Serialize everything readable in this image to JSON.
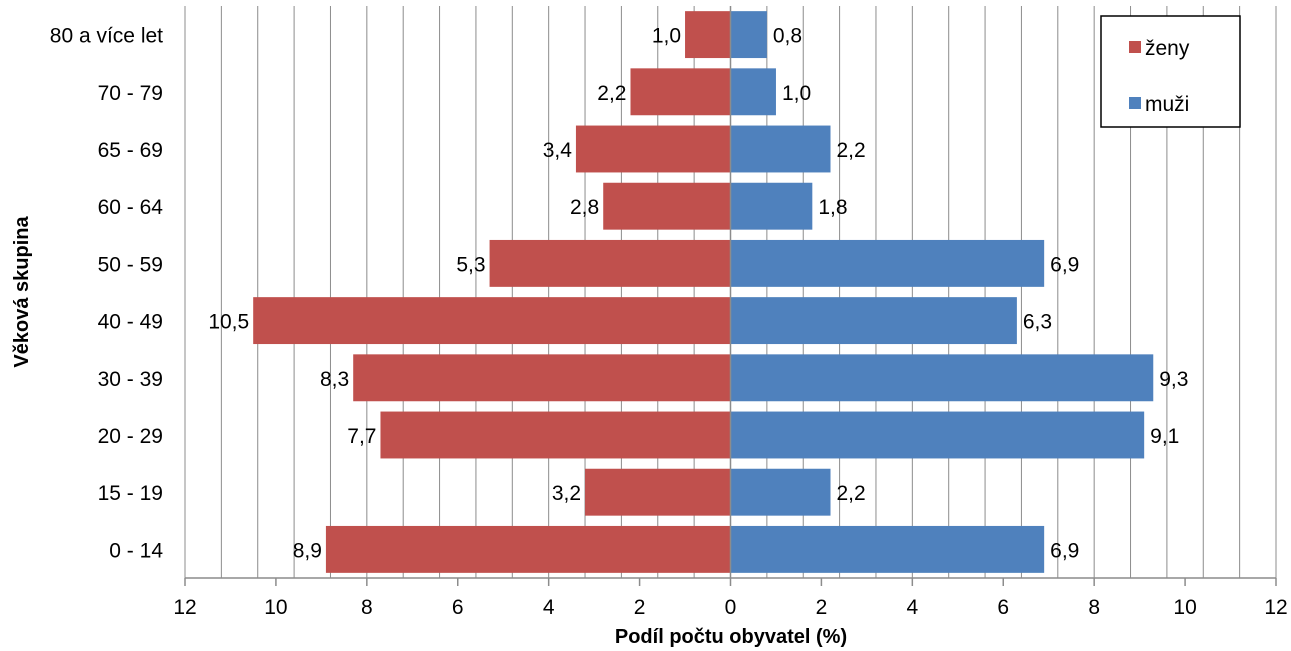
{
  "chart_data": {
    "type": "bar",
    "orientation": "horizontal",
    "layout": "population-pyramid",
    "categories": [
      "0 - 14",
      "15 - 19",
      "20 - 29",
      "30 - 39",
      "40 - 49",
      "50 - 59",
      "60 - 64",
      "65 - 69",
      "70 - 79",
      "80 a více let"
    ],
    "series": [
      {
        "name": "ženy",
        "side": "left",
        "color": "#C0504D",
        "values": [
          8.9,
          3.2,
          7.7,
          8.3,
          10.5,
          5.3,
          2.8,
          3.4,
          2.2,
          1.0
        ],
        "labels": [
          "8,9",
          "3,2",
          "7,7",
          "8,3",
          "10,5",
          "5,3",
          "2,8",
          "3,4",
          "2,2",
          "1,0"
        ]
      },
      {
        "name": "muži",
        "side": "right",
        "color": "#4F81BD",
        "values": [
          6.9,
          2.2,
          9.1,
          9.3,
          6.3,
          6.9,
          1.8,
          2.2,
          1.0,
          0.8
        ],
        "labels": [
          "6,9",
          "2,2",
          "9,1",
          "9,3",
          "6,3",
          "6,9",
          "1,8",
          "2,2",
          "1,0",
          "0,8"
        ]
      }
    ],
    "xlabel": "Podíl počtu obyvatel (%)",
    "ylabel": "Věková skupina",
    "xlim": [
      -12,
      12
    ],
    "xticks": [
      -12,
      -10,
      -8,
      -6,
      -4,
      -2,
      0,
      2,
      4,
      6,
      8,
      10,
      12
    ],
    "xtick_labels": [
      "12",
      "10",
      "8",
      "6",
      "4",
      "2",
      "0",
      "2",
      "4",
      "6",
      "8",
      "10",
      "12"
    ],
    "minor_gridline_step": 0.8,
    "grid": true,
    "legend_position": "top-right"
  }
}
